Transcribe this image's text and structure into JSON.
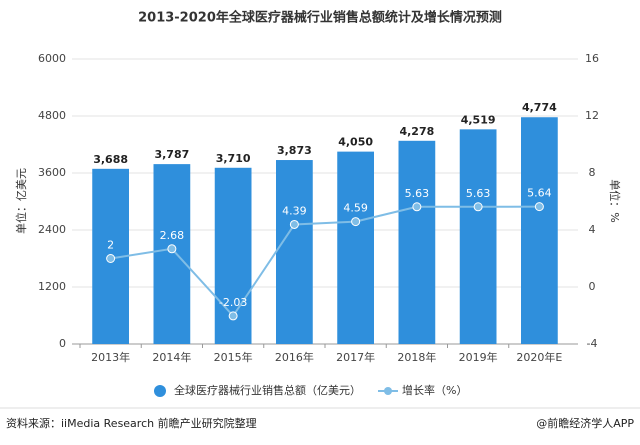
{
  "chart_data": {
    "type": "bar",
    "title": "2013-2020年全球医疗器械行业销售总额统计及增长情况预测",
    "categories": [
      "2013年",
      "2014年",
      "2015年",
      "2016年",
      "2017年",
      "2018年",
      "2019年",
      "2020年E"
    ],
    "series": [
      {
        "name": "全球医疗器械行业销售总额（亿美元）",
        "color": "#2f8fdc",
        "type": "bar",
        "values": [
          3688,
          3787,
          3710,
          3873,
          4050,
          4278,
          4519,
          4774
        ],
        "value_labels": [
          "3,688",
          "3,787",
          "3,710",
          "3,873",
          "4,050",
          "4,278",
          "4,519",
          "4,774"
        ]
      },
      {
        "name": "增长率（%）",
        "color": "#7fbde6",
        "type": "line",
        "axis": "y2",
        "values": [
          2,
          2.68,
          -2.03,
          4.39,
          4.59,
          5.63,
          5.63,
          5.64
        ]
      }
    ],
    "ylabel": "单位：亿美元",
    "y2label": "单位：%",
    "ylim": [
      0,
      6000
    ],
    "yticks": [
      0,
      1200,
      2400,
      3600,
      4800,
      6000
    ],
    "y2lim": [
      -4,
      16
    ],
    "y2ticks": [
      -4,
      0,
      4,
      8,
      12,
      16
    ],
    "grid": true
  },
  "footer": {
    "source": "资料来源：iiMedia Research 前瞻产业研究院整理",
    "brand": "@前瞻经济学人APP"
  }
}
